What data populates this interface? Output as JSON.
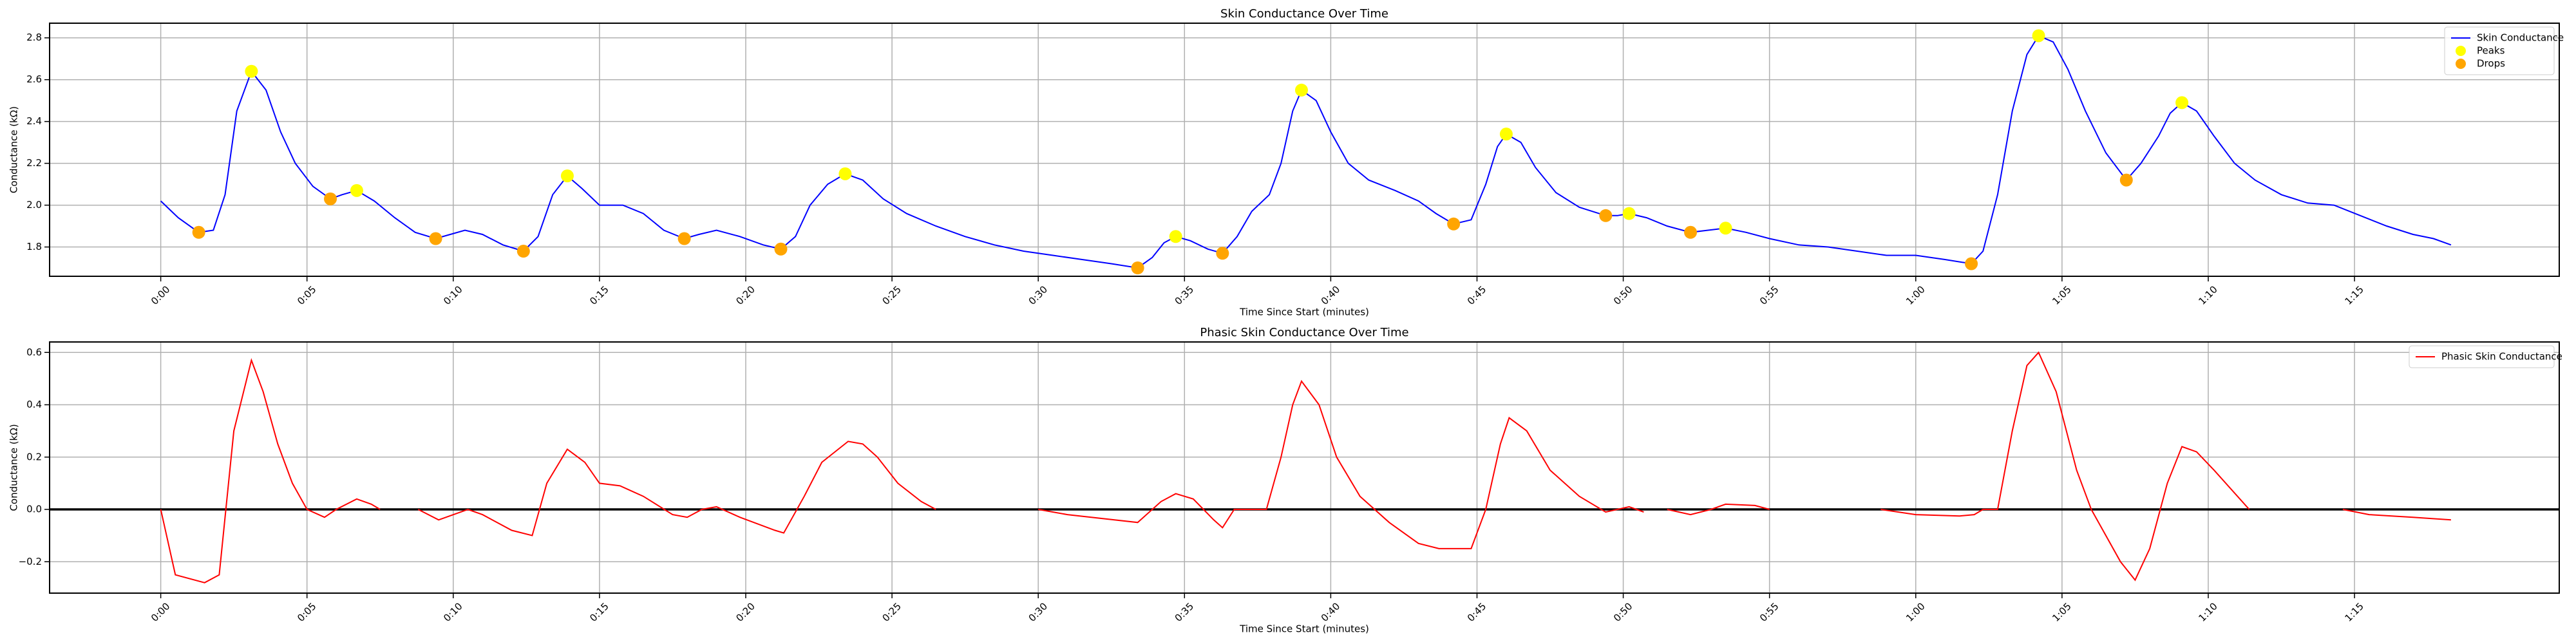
{
  "chart_data": [
    {
      "type": "line",
      "title": "Skin Conductance Over Time",
      "xlabel": "Time Since Start (minutes)",
      "ylabel": "Conductance (kΩ)",
      "series": [
        {
          "name": "Skin Conductance",
          "color": "#0000ff",
          "style": "line",
          "x": [
            0,
            0.6,
            1.3,
            1.8,
            2.2,
            2.6,
            3.1,
            3.6,
            4.1,
            4.6,
            5.2,
            5.8,
            6.2,
            6.7,
            7.3,
            8.0,
            8.7,
            9.4,
            9.9,
            10.4,
            11.0,
            11.7,
            12.4,
            12.9,
            13.4,
            13.9,
            14.4,
            15.0,
            15.8,
            16.5,
            17.2,
            17.9,
            18.4,
            19.0,
            19.8,
            20.6,
            21.2,
            21.7,
            22.2,
            22.8,
            23.4,
            24.0,
            24.7,
            25.5,
            26.5,
            27.5,
            28.5,
            29.5,
            30.5,
            31.5,
            32.5,
            33.4,
            33.9,
            34.3,
            34.7,
            35.2,
            35.8,
            36.3,
            36.8,
            37.3,
            37.9,
            38.3,
            38.7,
            39.0,
            39.5,
            40.0,
            40.6,
            41.3,
            42.2,
            43.0,
            43.6,
            44.2,
            44.8,
            45.3,
            45.7,
            46.0,
            46.5,
            47.0,
            47.7,
            48.5,
            49.4,
            49.8,
            50.2,
            50.8,
            51.5,
            52.3,
            52.9,
            53.5,
            54.2,
            55.0,
            56.0,
            57.0,
            58.0,
            59.0,
            60.0,
            61.0,
            61.9,
            62.3,
            62.8,
            63.3,
            63.8,
            64.2,
            64.7,
            65.2,
            65.8,
            66.5,
            67.2,
            67.7,
            68.3,
            68.7,
            69.1,
            69.6,
            70.2,
            70.9,
            71.6,
            72.5,
            73.4,
            74.3,
            75.2,
            76.1,
            77.0,
            77.7,
            78.3
          ],
          "values": [
            2.02,
            1.94,
            1.87,
            1.88,
            2.05,
            2.45,
            2.64,
            2.55,
            2.35,
            2.2,
            2.09,
            2.03,
            2.05,
            2.07,
            2.02,
            1.94,
            1.87,
            1.84,
            1.86,
            1.88,
            1.86,
            1.81,
            1.78,
            1.85,
            2.05,
            2.14,
            2.08,
            2.0,
            2.0,
            1.96,
            1.88,
            1.84,
            1.86,
            1.88,
            1.85,
            1.81,
            1.79,
            1.85,
            2.0,
            2.1,
            2.15,
            2.12,
            2.03,
            1.96,
            1.9,
            1.85,
            1.81,
            1.78,
            1.76,
            1.74,
            1.72,
            1.7,
            1.75,
            1.82,
            1.85,
            1.83,
            1.79,
            1.77,
            1.85,
            1.97,
            2.05,
            2.2,
            2.45,
            2.55,
            2.5,
            2.35,
            2.2,
            2.12,
            2.07,
            2.02,
            1.96,
            1.91,
            1.93,
            2.1,
            2.28,
            2.34,
            2.3,
            2.18,
            2.06,
            1.99,
            1.95,
            1.95,
            1.96,
            1.94,
            1.9,
            1.87,
            1.88,
            1.89,
            1.87,
            1.84,
            1.81,
            1.8,
            1.78,
            1.76,
            1.76,
            1.74,
            1.72,
            1.78,
            2.05,
            2.45,
            2.72,
            2.81,
            2.78,
            2.65,
            2.45,
            2.25,
            2.12,
            2.2,
            2.33,
            2.44,
            2.49,
            2.45,
            2.33,
            2.2,
            2.12,
            2.05,
            2.01,
            2.0,
            1.95,
            1.9,
            1.86,
            1.84,
            1.81
          ]
        },
        {
          "name": "Peaks",
          "color": "#ffff00",
          "style": "points",
          "x": [
            3.1,
            6.7,
            13.9,
            23.4,
            34.7,
            39.0,
            46.0,
            50.2,
            53.5,
            64.2,
            69.1
          ],
          "values": [
            2.64,
            2.07,
            2.14,
            2.15,
            1.85,
            2.55,
            2.34,
            1.96,
            1.89,
            2.81,
            2.49
          ]
        },
        {
          "name": "Drops",
          "color": "#ffa500",
          "style": "points",
          "x": [
            1.3,
            5.8,
            9.4,
            12.4,
            17.9,
            21.2,
            33.4,
            36.3,
            44.2,
            49.4,
            52.3,
            61.9,
            67.2
          ],
          "values": [
            1.87,
            2.03,
            1.84,
            1.78,
            1.84,
            1.79,
            1.7,
            1.77,
            1.91,
            1.95,
            1.87,
            1.72,
            2.12
          ]
        }
      ],
      "xlim": [
        -3.8,
        82.0
      ],
      "ylim": [
        1.66,
        2.87
      ],
      "xticks": [
        {
          "value": 0,
          "label": "0:00"
        },
        {
          "value": 5,
          "label": "0:05"
        },
        {
          "value": 10,
          "label": "0:10"
        },
        {
          "value": 15,
          "label": "0:15"
        },
        {
          "value": 20,
          "label": "0:20"
        },
        {
          "value": 25,
          "label": "0:25"
        },
        {
          "value": 30,
          "label": "0:30"
        },
        {
          "value": 35,
          "label": "0:35"
        },
        {
          "value": 40,
          "label": "0:40"
        },
        {
          "value": 45,
          "label": "0:45"
        },
        {
          "value": 50,
          "label": "0:50"
        },
        {
          "value": 55,
          "label": "0:55"
        },
        {
          "value": 60,
          "label": "1:00"
        },
        {
          "value": 65,
          "label": "1:05"
        },
        {
          "value": 70,
          "label": "1:10"
        },
        {
          "value": 75,
          "label": "1:15"
        }
      ],
      "yticks": [
        1.8,
        {
          "value": 2,
          "label": "2.0"
        },
        2.2,
        2.4,
        2.6,
        2.8
      ],
      "grid": true,
      "legend": "upper right"
    },
    {
      "type": "line",
      "title": "Phasic Skin Conductance Over Time",
      "xlabel": "Time Since Start (minutes)",
      "ylabel": "Conductance (kΩ)",
      "reference_line": 0,
      "series": [
        {
          "name": "Phasic Skin Conductance",
          "color": "#ff0000",
          "style": "line",
          "x": [
            0,
            0.5,
            1.5,
            2.0,
            2.5,
            3.1,
            3.5,
            4.0,
            4.5,
            5.0,
            5.6,
            6.0,
            6.7,
            7.2,
            7.5,
            8.1,
            8.8,
            9.5,
            10.5,
            11.0,
            12.0,
            12.7,
            13.2,
            13.9,
            14.5,
            15.0,
            15.7,
            16.5,
            17.5,
            18.0,
            18.5,
            19.0,
            19.8,
            21.0,
            21.3,
            22.0,
            22.6,
            23.5,
            24.0,
            24.5,
            25.2,
            26.0,
            26.5,
            28.2,
            30.0,
            31.0,
            33.4,
            34.2,
            34.7,
            35.3,
            36.0,
            36.3,
            36.7,
            37.8,
            38.3,
            38.7,
            39.0,
            39.6,
            40.2,
            41.0,
            42.0,
            43.0,
            43.7,
            44.8,
            45.3,
            45.8,
            46.1,
            46.7,
            47.5,
            48.5,
            49.4,
            50.2,
            50.7,
            51.1,
            51.5,
            52.3,
            53.0,
            53.5,
            54.5,
            55.0,
            57.0,
            58.8,
            60.0,
            61.5,
            62.0,
            62.3,
            62.8,
            63.3,
            63.8,
            64.2,
            64.8,
            65.5,
            66.0,
            67.0,
            67.5,
            68.0,
            68.6,
            69.1,
            69.6,
            70.2,
            71.0,
            71.4,
            73.0,
            74.6,
            75.5,
            77.0,
            78.3
          ],
          "values": [
            0.0,
            -0.25,
            -0.28,
            -0.25,
            0.3,
            0.57,
            0.45,
            0.25,
            0.1,
            0.0,
            -0.03,
            0.0,
            0.04,
            0.02,
            0.0,
            null,
            0.0,
            -0.04,
            0.0,
            -0.02,
            -0.08,
            -0.1,
            0.1,
            0.23,
            0.18,
            0.1,
            0.09,
            0.05,
            -0.02,
            -0.03,
            0.0,
            0.01,
            -0.03,
            -0.08,
            -0.09,
            0.05,
            0.18,
            0.26,
            0.25,
            0.2,
            0.1,
            0.03,
            0.0,
            null,
            0.0,
            -0.02,
            -0.05,
            0.03,
            0.06,
            0.04,
            -0.04,
            -0.07,
            0.0,
            0.0,
            0.2,
            0.4,
            0.49,
            0.4,
            0.2,
            0.05,
            -0.05,
            -0.13,
            -0.15,
            -0.15,
            0.0,
            0.25,
            0.35,
            0.3,
            0.15,
            0.05,
            -0.01,
            0.01,
            -0.01,
            null,
            0.0,
            -0.02,
            0.0,
            0.02,
            0.015,
            0.0,
            null,
            0.0,
            -0.02,
            -0.025,
            -0.02,
            0.0,
            0.0,
            0.3,
            0.55,
            0.6,
            0.45,
            0.15,
            0.0,
            -0.2,
            -0.27,
            -0.15,
            0.1,
            0.24,
            0.22,
            0.15,
            0.05,
            0.0,
            null,
            0.0,
            -0.02,
            -0.03,
            -0.04
          ]
        }
      ],
      "xlim": [
        -3.8,
        82.0
      ],
      "ylim": [
        -0.32,
        0.64
      ],
      "xticks": [
        {
          "value": 0,
          "label": "0:00"
        },
        {
          "value": 5,
          "label": "0:05"
        },
        {
          "value": 10,
          "label": "0:10"
        },
        {
          "value": 15,
          "label": "0:15"
        },
        {
          "value": 20,
          "label": "0:20"
        },
        {
          "value": 25,
          "label": "0:25"
        },
        {
          "value": 30,
          "label": "0:30"
        },
        {
          "value": 35,
          "label": "0:35"
        },
        {
          "value": 40,
          "label": "0:40"
        },
        {
          "value": 45,
          "label": "0:45"
        },
        {
          "value": 50,
          "label": "0:50"
        },
        {
          "value": 55,
          "label": "0:55"
        },
        {
          "value": 60,
          "label": "1:00"
        },
        {
          "value": 65,
          "label": "1:05"
        },
        {
          "value": 70,
          "label": "1:10"
        },
        {
          "value": 75,
          "label": "1:15"
        }
      ],
      "yticks": [
        {
          "value": -0.2,
          "label": "−0.2"
        },
        {
          "value": 0,
          "label": "0.0"
        },
        0.2,
        0.4,
        0.6
      ],
      "grid": true,
      "legend": "upper right"
    }
  ]
}
